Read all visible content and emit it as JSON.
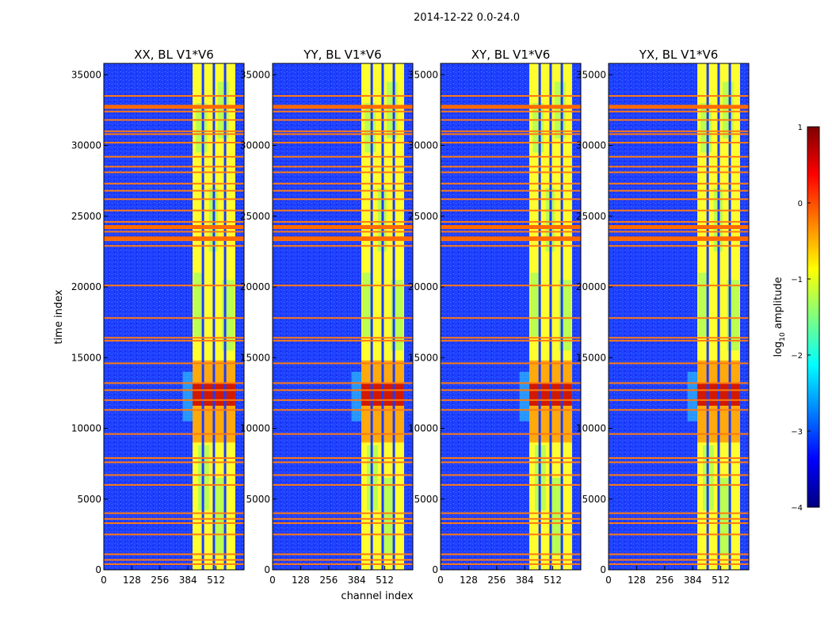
{
  "figure": {
    "suptitle": "2014-12-22 0.0-24.0",
    "xlabel": "channel index",
    "ylabel": "time index"
  },
  "chart_data": {
    "type": "heatmap",
    "y_ticks": [
      0,
      5000,
      10000,
      15000,
      20000,
      25000,
      30000,
      35000
    ],
    "ylim": [
      0,
      35800
    ],
    "x_ticks": [
      0,
      128,
      256,
      384,
      512
    ],
    "xlim": [
      0,
      640
    ],
    "panels": [
      {
        "title": "XX, BL V1*V6"
      },
      {
        "title": "YY, BL V1*V6"
      },
      {
        "title": "XY, BL V1*V6"
      },
      {
        "title": "YX, BL V1*V6"
      }
    ],
    "colorbar": {
      "label_prefix": "log",
      "label_sub": "10",
      "label_suffix": " amplitude",
      "range": [
        -4,
        1
      ],
      "ticks": [
        1,
        0,
        -1,
        -2,
        -3,
        -4
      ],
      "tick_labels": [
        "1",
        "0",
        "−1",
        "−2",
        "−3",
        "−4"
      ],
      "colors": [
        "#00007f",
        "#0000ff",
        "#007fff",
        "#00ffff",
        "#7fff7f",
        "#ffff00",
        "#ff7f00",
        "#ff0000",
        "#7f0000"
      ]
    },
    "rfi_time_indices": [
      400,
      700,
      1100,
      2500,
      3300,
      3600,
      4000,
      6000,
      6700,
      7600,
      7900,
      9600,
      11300,
      12000,
      12700,
      13200,
      14600,
      16200,
      16400,
      17800,
      20100,
      22900,
      23300,
      23500,
      23900,
      24300,
      24600,
      25400,
      26200,
      26800,
      27300,
      28100,
      28500,
      29200,
      30200,
      30800,
      31000,
      31800,
      32400,
      32800,
      33500
    ]
  }
}
